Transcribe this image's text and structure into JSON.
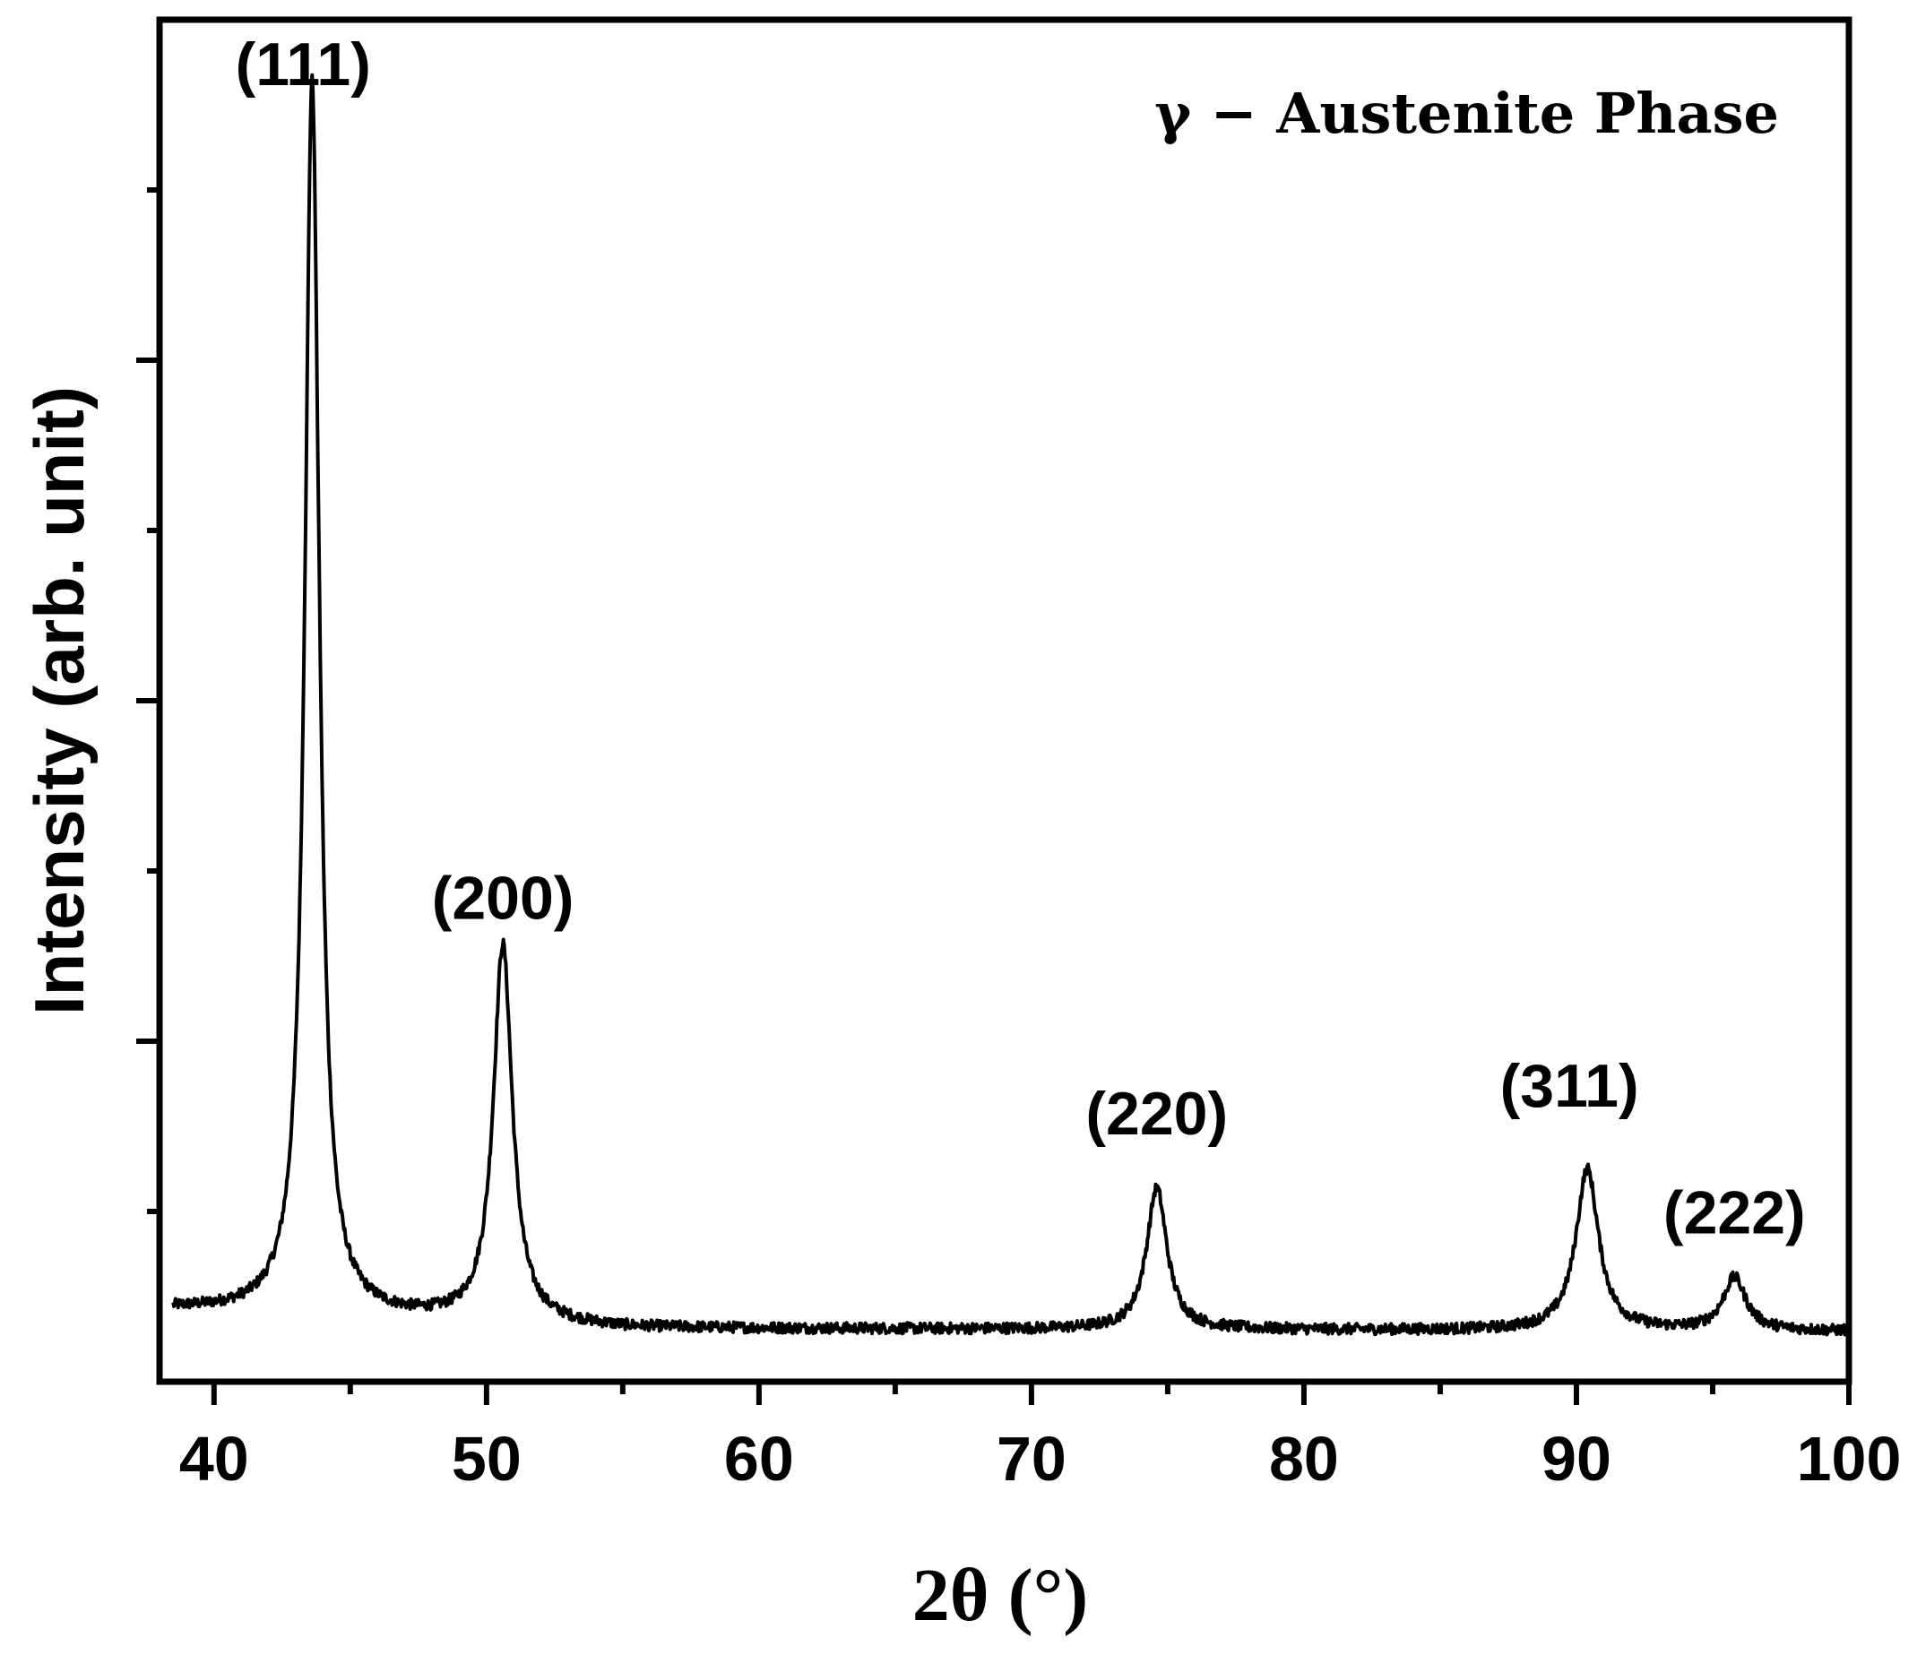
{
  "chart_data": {
    "type": "line",
    "xlabel": "2θ (°)",
    "ylabel": "Intensity (arb. unit)",
    "annotation": "γ − Austenite Phase",
    "xlim": [
      38,
      100
    ],
    "ylim": [
      0,
      100
    ],
    "x_ticks": [
      "40",
      "50",
      "60",
      "70",
      "80",
      "90",
      "100"
    ],
    "y_ticks_labeled": false,
    "grid": false,
    "legend": "none",
    "line_color": "#000000",
    "baseline": {
      "start": 5.3,
      "mid": 3.9,
      "end": 3.7
    },
    "peaks": [
      {
        "label": "(111)",
        "x": 43.6,
        "y": 95.5
      },
      {
        "label": "(200)",
        "x": 50.6,
        "y": 32.0
      },
      {
        "label": "(220)",
        "x": 74.6,
        "y": 14.2
      },
      {
        "label": "(311)",
        "x": 90.4,
        "y": 15.6
      },
      {
        "label": "(222)",
        "x": 95.8,
        "y": 7.6
      }
    ]
  }
}
